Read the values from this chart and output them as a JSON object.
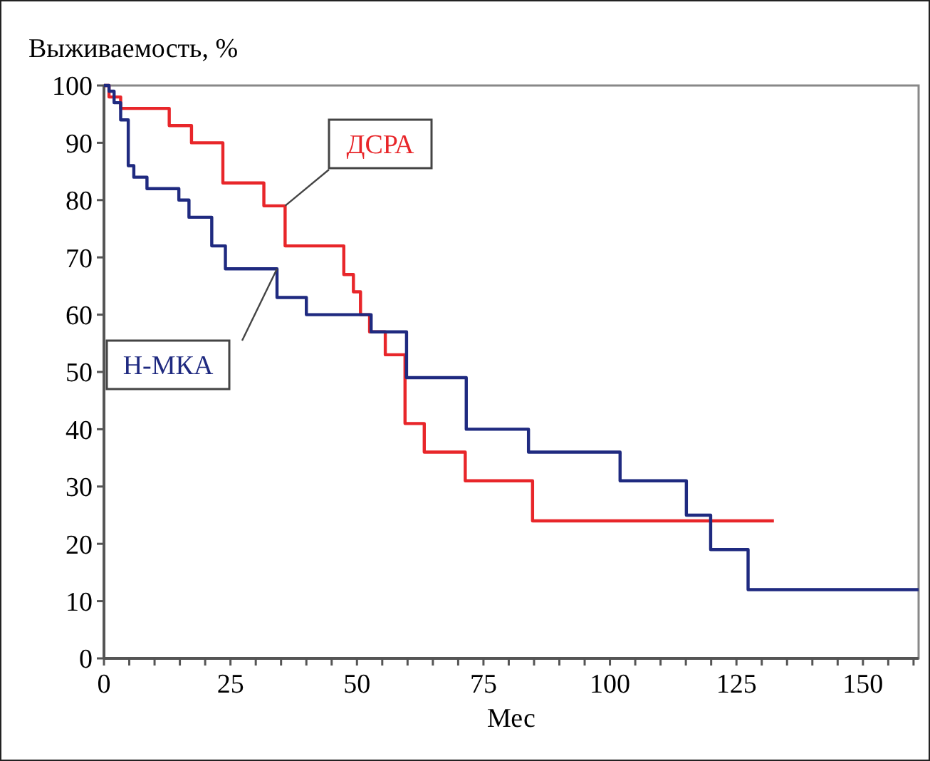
{
  "chart_data": {
    "type": "step",
    "ylabel": "Выживаемость, %",
    "xlabel": "Мес",
    "xlim": [
      0,
      161
    ],
    "ylim": [
      0,
      100
    ],
    "xticks": [
      0,
      {
        "value": 5,
        "label": null
      },
      {
        "value": 10,
        "label": null
      },
      {
        "value": 15,
        "label": null
      },
      {
        "value": 20,
        "label": null
      },
      25,
      {
        "value": 30,
        "label": null
      },
      {
        "value": 35,
        "label": null
      },
      {
        "value": 40,
        "label": null
      },
      {
        "value": 45,
        "label": null
      },
      50,
      {
        "value": 55,
        "label": null
      },
      {
        "value": 60,
        "label": null
      },
      {
        "value": 65,
        "label": null
      },
      {
        "value": 70,
        "label": null
      },
      75,
      {
        "value": 80,
        "label": null
      },
      {
        "value": 85,
        "label": null
      },
      {
        "value": 90,
        "label": null
      },
      {
        "value": 95,
        "label": null
      },
      100,
      {
        "value": 105,
        "label": null
      },
      {
        "value": 110,
        "label": null
      },
      {
        "value": 115,
        "label": null
      },
      {
        "value": 120,
        "label": null
      },
      125,
      {
        "value": 130,
        "label": null
      },
      {
        "value": 135,
        "label": null
      },
      {
        "value": 140,
        "label": null
      },
      {
        "value": 145,
        "label": null
      },
      150,
      {
        "value": 155,
        "label": null
      },
      {
        "value": 160,
        "label": null
      }
    ],
    "yticks": [
      0,
      10,
      20,
      30,
      40,
      50,
      60,
      70,
      80,
      90,
      100
    ],
    "grid": false,
    "legend": false,
    "marker": "none",
    "line_style": "solid",
    "series": [
      {
        "name": "ДСРА",
        "color": "#e8262a",
        "x": [
          0,
          1,
          3.3,
          12.9,
          17.3,
          23.5,
          31.6,
          35.8,
          47.4,
          49.3,
          50.7,
          52.5,
          55.6,
          59.5,
          63.3,
          71.4,
          84.7,
          132.4
        ],
        "values": [
          100,
          98,
          96,
          93,
          90,
          83,
          79,
          72,
          67,
          64,
          60,
          57,
          53,
          41,
          36,
          31,
          24,
          24
        ]
      },
      {
        "name": "Н-МКА",
        "color": "#1f2a80",
        "x": [
          0,
          1,
          2,
          3.3,
          4.8,
          5.9,
          8.5,
          14.8,
          16.8,
          21.3,
          24,
          34.2,
          40,
          52.8,
          59.8,
          71.6,
          83.9,
          102,
          115.1,
          119.9,
          127.3,
          161
        ],
        "values": [
          100,
          99,
          97,
          94,
          86,
          84,
          82,
          80,
          77,
          72,
          68,
          63,
          60,
          57,
          49,
          40,
          36,
          31,
          25,
          19,
          12,
          12
        ]
      }
    ]
  }
}
